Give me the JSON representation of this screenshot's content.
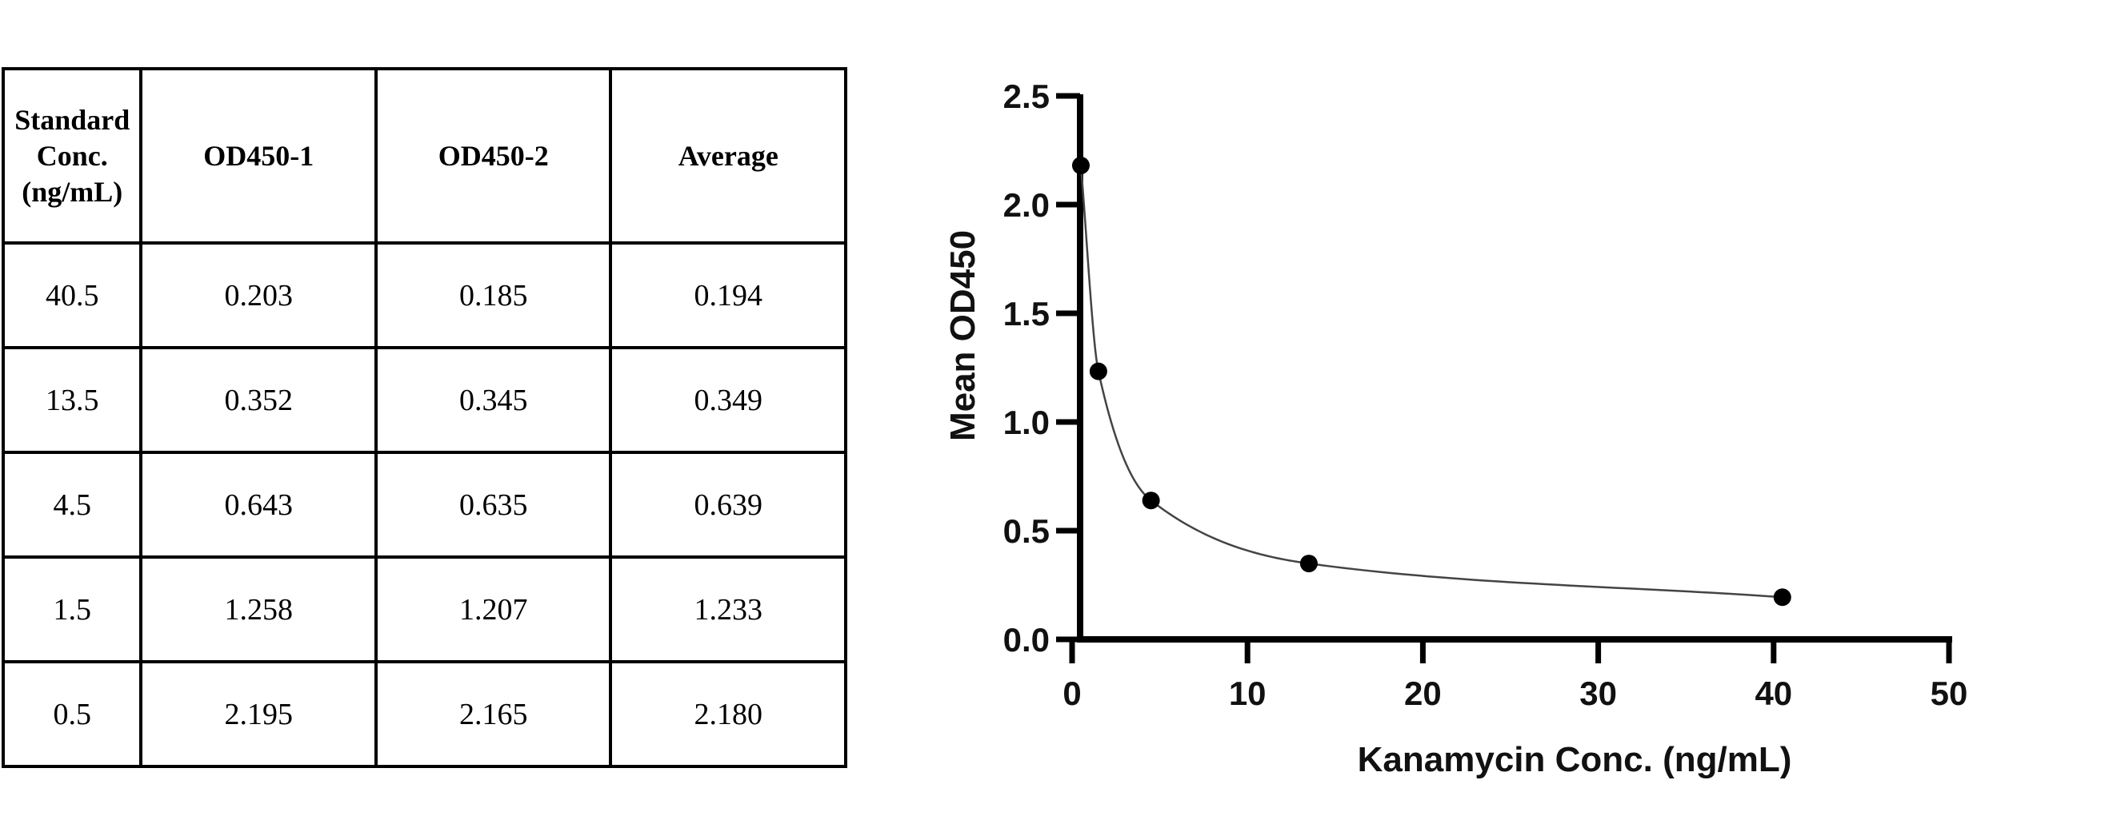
{
  "table": {
    "headers": [
      "Standard\nConc.\n(ng/mL)",
      "OD450-1",
      "OD450-2",
      "Average"
    ],
    "rows": [
      [
        "40.5",
        "0.203",
        "0.185",
        "0.194"
      ],
      [
        "13.5",
        "0.352",
        "0.345",
        "0.349"
      ],
      [
        "4.5",
        "0.643",
        "0.635",
        "0.639"
      ],
      [
        "1.5",
        "1.258",
        "1.207",
        "1.233"
      ],
      [
        "0.5",
        "2.195",
        "2.165",
        "2.180"
      ]
    ]
  },
  "chart_data": {
    "type": "scatter",
    "title": "",
    "xlabel": "Kanamycin Conc. (ng/mL)",
    "ylabel": "Mean OD450",
    "xlim": [
      0,
      50
    ],
    "ylim": [
      0,
      2.5
    ],
    "xticks": [
      "0",
      "10",
      "20",
      "30",
      "40",
      "50"
    ],
    "yticks": [
      "0.0",
      "0.5",
      "1.0",
      "1.5",
      "2.0",
      "2.5"
    ],
    "points": [
      {
        "x": 0.5,
        "y": 2.18
      },
      {
        "x": 1.5,
        "y": 1.233
      },
      {
        "x": 4.5,
        "y": 0.639
      },
      {
        "x": 13.5,
        "y": 0.349
      },
      {
        "x": 40.5,
        "y": 0.194
      }
    ],
    "fit_curve": true,
    "grid": false,
    "legend": "none",
    "colors": {
      "points": "#000000",
      "curve": "#444444",
      "axes": "#000000"
    }
  }
}
